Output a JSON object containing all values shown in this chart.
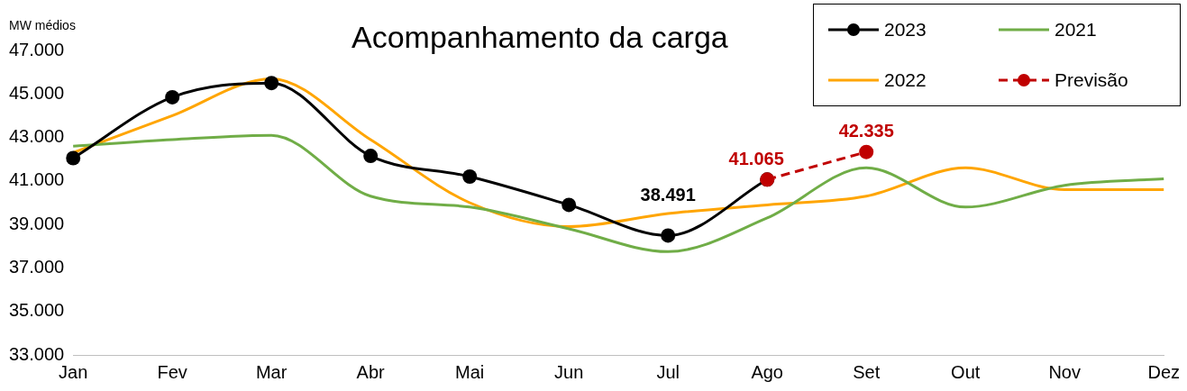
{
  "chart_data": {
    "type": "line",
    "title": "Acompanhamento da carga",
    "ylabel": "MW médios",
    "categories": [
      "Jan",
      "Fev",
      "Mar",
      "Abr",
      "Mai",
      "Jun",
      "Jul",
      "Ago",
      "Set",
      "Out",
      "Nov",
      "Dez"
    ],
    "series": [
      {
        "name": "2023",
        "color": "#000000",
        "marker": "circle",
        "line_style": "solid",
        "values": [
          42050,
          44850,
          45500,
          42150,
          41200,
          39900,
          38491,
          41065,
          null,
          null,
          null,
          null
        ],
        "value_labels": [
          null,
          null,
          null,
          null,
          null,
          null,
          "38.491",
          null,
          null,
          null,
          null,
          null
        ]
      },
      {
        "name": "2021",
        "color": "#70ad47",
        "marker": "none",
        "line_style": "solid",
        "values": [
          42600,
          42900,
          43100,
          40300,
          39800,
          38800,
          37750,
          39300,
          41600,
          39800,
          40800,
          41100
        ]
      },
      {
        "name": "2022",
        "color": "#ffa500",
        "marker": "none",
        "line_style": "solid",
        "values": [
          42300,
          44000,
          45700,
          42900,
          40000,
          38900,
          39500,
          39900,
          40300,
          41600,
          40600,
          40600
        ]
      },
      {
        "name": "Previsão",
        "color": "#c00000",
        "marker": "circle",
        "line_style": "dashed",
        "values": [
          null,
          null,
          null,
          null,
          null,
          null,
          null,
          41065,
          42335,
          null,
          null,
          null
        ],
        "value_labels": [
          null,
          null,
          null,
          null,
          null,
          null,
          null,
          "41.065",
          "42.335",
          null,
          null,
          null
        ]
      }
    ],
    "ylim": [
      33000,
      47000
    ],
    "yticks": [
      {
        "value": 33000,
        "label": "33.000"
      },
      {
        "value": 35000,
        "label": "35.000"
      },
      {
        "value": 37000,
        "label": "37.000"
      },
      {
        "value": 39000,
        "label": "39.000"
      },
      {
        "value": 41000,
        "label": "41.000"
      },
      {
        "value": 43000,
        "label": "43.000"
      },
      {
        "value": 45000,
        "label": "45.000"
      },
      {
        "value": 47000,
        "label": "47.000"
      }
    ],
    "grid": false,
    "legend": "top right"
  }
}
